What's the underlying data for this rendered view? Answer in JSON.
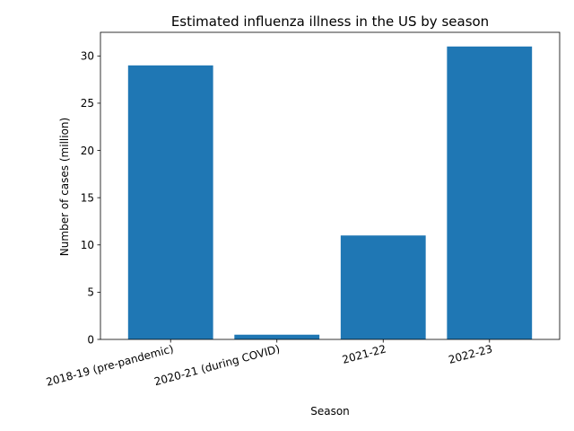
{
  "chart_data": {
    "type": "bar",
    "title": "Estimated influenza illness in the US by season",
    "xlabel": "Season",
    "ylabel": "Number of cases (million)",
    "categories": [
      "2018-19 (pre-pandemic)",
      "2020-21 (during COVID)",
      "2021-22",
      "2022-23"
    ],
    "values": [
      29,
      0.5,
      11,
      31
    ],
    "ylim": [
      0,
      32.5
    ],
    "yticks": [
      0,
      5,
      10,
      15,
      20,
      25,
      30
    ],
    "bar_color": "#1f77b4",
    "grid": false,
    "legend": "none"
  }
}
